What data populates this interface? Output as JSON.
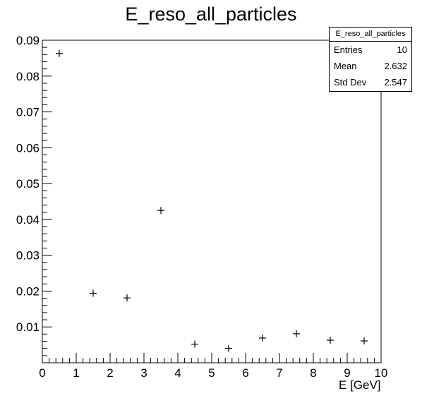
{
  "title": "E_reso_all_particles",
  "stats": {
    "name": "E_reso_all_particles",
    "rows": [
      {
        "label": "Entries",
        "value": "10"
      },
      {
        "label": "Mean",
        "value": "2.632"
      },
      {
        "label": "Std Dev",
        "value": "2.547"
      }
    ]
  },
  "chart_data": {
    "type": "scatter",
    "title": "E_reso_all_particles",
    "xlabel": "E [GeV]",
    "ylabel": "",
    "xlim": [
      0,
      10
    ],
    "ylim": [
      0,
      0.09
    ],
    "grid": false,
    "x_ticks": [
      "0",
      "1",
      "2",
      "3",
      "4",
      "5",
      "6",
      "7",
      "8",
      "9",
      "10"
    ],
    "y_ticks": [
      "0.01",
      "0.02",
      "0.03",
      "0.04",
      "0.05",
      "0.06",
      "0.07",
      "0.08",
      "0.09"
    ],
    "series": [
      {
        "x": [
          0.5,
          1.5,
          2.5,
          3.5,
          4.5,
          5.5,
          6.5,
          7.5,
          8.5,
          9.5
        ],
        "y": [
          0.0863,
          0.0194,
          0.0181,
          0.0425,
          0.0052,
          0.004,
          0.0069,
          0.0081,
          0.0063,
          0.0061
        ]
      }
    ],
    "marker": "+",
    "color": "#000000"
  }
}
